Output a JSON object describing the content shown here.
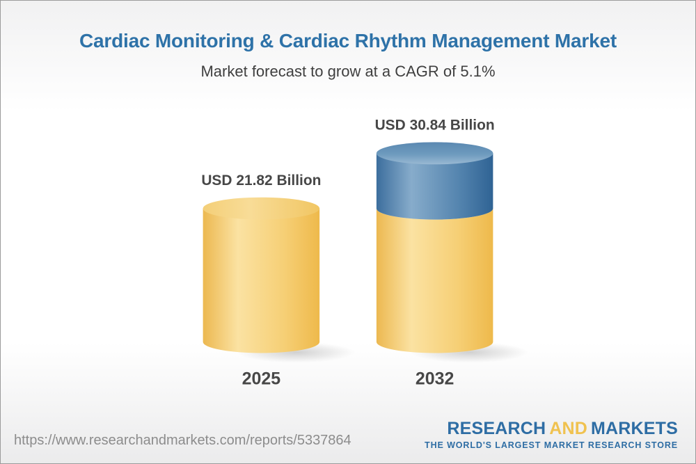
{
  "page": {
    "title": "Cardiac Monitoring & Cardiac Rhythm Management Market",
    "subtitle": "Market forecast to grow at a CAGR of 5.1%"
  },
  "chart_data": {
    "type": "bar",
    "variant": "3d-cylinder-stacked",
    "title": "Cardiac Monitoring & Cardiac Rhythm Management Market",
    "subtitle": "Market forecast to grow at a CAGR of 5.1%",
    "unit": "USD Billion",
    "cagr_percent": 5.1,
    "categories": [
      "2025",
      "2032"
    ],
    "values": [
      21.82,
      30.84
    ],
    "value_labels": [
      "USD 21.82 Billion",
      "USD 30.84 Billion"
    ],
    "base_segment_value": 21.82,
    "colors": {
      "base_segment_gold": "#F5C963",
      "growth_segment_blue": "#4C7DA8",
      "value_label_text": "#474747",
      "category_label_text": "#474747"
    },
    "legend": "none",
    "axes": "none"
  },
  "footer": {
    "url": "https://www.researchandmarkets.com/reports/5337864",
    "logo": {
      "word1": "RESEARCH",
      "word2": "AND",
      "word3": "MARKETS",
      "tagline": "THE WORLD'S LARGEST MARKET RESEARCH STORE",
      "blue": "#2E6DA4",
      "gold": "#F0C24F"
    }
  },
  "theme": {
    "title_color": "#2E72A8",
    "subtitle_color": "#3F3F3F",
    "url_color": "#8C8C8C",
    "background_top": "#F1F1F2",
    "background_bottom": "#ECECEC",
    "border_color": "#9B9B9B"
  }
}
